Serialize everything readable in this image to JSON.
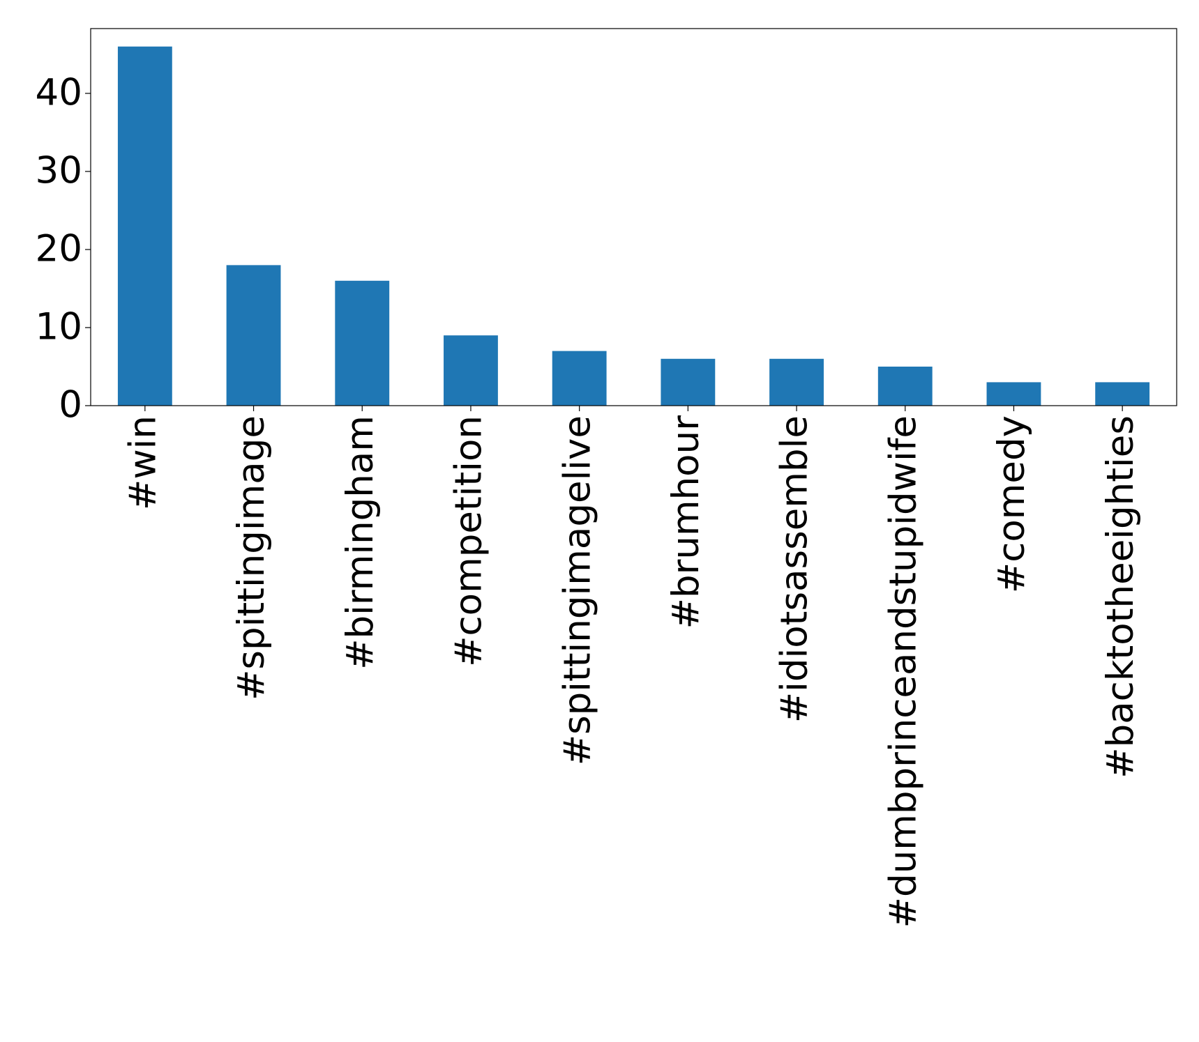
{
  "chart_data": {
    "type": "bar",
    "categories": [
      "#win",
      "#spittingimage",
      "#birmingham",
      "#competition",
      "#spittingimagelive",
      "#brumhour",
      "#idiotsassemble",
      "#dumbprinceandstupidwife",
      "#comedy",
      "#backtotheeighties"
    ],
    "values": [
      46,
      18,
      16,
      9,
      7,
      6,
      6,
      5,
      3,
      3
    ],
    "color": "#1f77b4",
    "ylim": [
      0,
      48.3
    ],
    "yticks": [
      0,
      10,
      20,
      30,
      40
    ],
    "grid": false
  }
}
